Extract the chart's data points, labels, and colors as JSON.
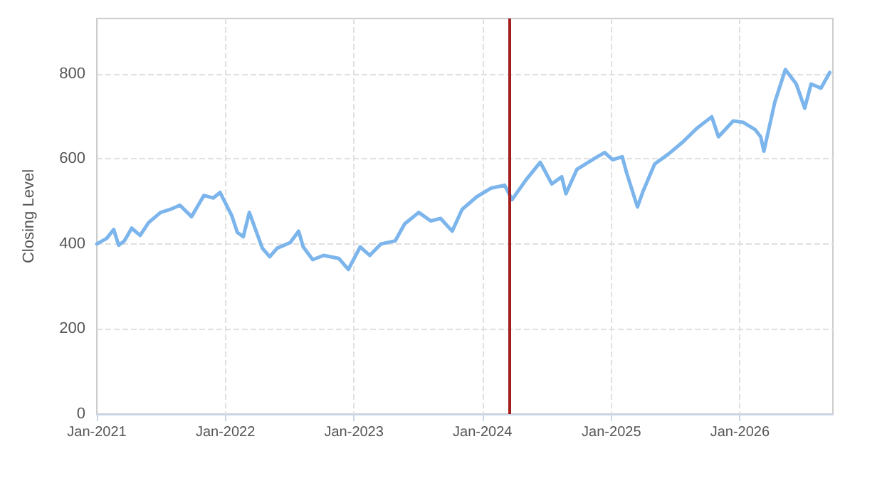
{
  "chart_data": {
    "type": "line",
    "ylabel": "Closing Level",
    "x": [
      "2021-01-01",
      "2021-01-29",
      "2021-02-18",
      "2021-03-04",
      "2021-03-20",
      "2021-04-10",
      "2021-05-04",
      "2021-05-28",
      "2021-07-01",
      "2021-07-28",
      "2021-08-25",
      "2021-09-27",
      "2021-11-01",
      "2021-11-28",
      "2021-12-17",
      "2022-01-19",
      "2022-02-04",
      "2022-02-21",
      "2022-03-10",
      "2022-04-16",
      "2022-05-07",
      "2022-05-28",
      "2022-07-04",
      "2022-07-28",
      "2022-08-10",
      "2022-09-06",
      "2022-10-07",
      "2022-11-19",
      "2022-12-16",
      "2023-01-19",
      "2023-02-15",
      "2023-03-19",
      "2023-04-28",
      "2023-05-25",
      "2023-07-04",
      "2023-08-07",
      "2023-09-04",
      "2023-10-07",
      "2023-11-04",
      "2023-12-16",
      "2024-01-25",
      "2024-03-04",
      "2024-03-25",
      "2024-05-04",
      "2024-06-13",
      "2024-07-16",
      "2024-08-13",
      "2024-08-25",
      "2024-09-25",
      "2024-11-16",
      "2024-12-13",
      "2025-01-04",
      "2025-02-01",
      "2025-02-13",
      "2025-03-16",
      "2025-04-01",
      "2025-05-04",
      "2025-06-13",
      "2025-07-22",
      "2025-09-01",
      "2025-10-13",
      "2025-11-01",
      "2025-12-13",
      "2026-01-10",
      "2026-02-13",
      "2026-03-01",
      "2026-03-10",
      "2026-04-10",
      "2026-05-10",
      "2026-06-10",
      "2026-07-04",
      "2026-07-22",
      "2026-08-19",
      "2026-09-13"
    ],
    "series": [
      {
        "color": "#7cb5ec",
        "values": [
          400,
          413,
          434,
          397,
          407,
          437,
          420,
          450,
          474,
          481,
          491,
          464,
          514,
          508,
          521,
          467,
          427,
          417,
          474,
          390,
          370,
          390,
          403,
          430,
          393,
          363,
          373,
          366,
          340,
          393,
          373,
          400,
          407,
          447,
          474,
          454,
          460,
          430,
          481,
          511,
          531,
          538,
          504,
          551,
          592,
          541,
          558,
          518,
          575,
          602,
          615,
          598,
          605,
          568,
          487,
          524,
          588,
          612,
          639,
          672,
          699,
          652,
          689,
          686,
          669,
          652,
          618,
          733,
          810,
          776,
          719,
          776,
          766,
          803
        ]
      }
    ],
    "xlim": [
      "2021-01-01",
      "2026-09-22"
    ],
    "xticks": [
      {
        "value": "2021-01-01",
        "label": "Jan-2021"
      },
      {
        "value": "2022-01-01",
        "label": "Jan-2022"
      },
      {
        "value": "2023-01-01",
        "label": "Jan-2023"
      },
      {
        "value": "2024-01-01",
        "label": "Jan-2024"
      },
      {
        "value": "2025-01-01",
        "label": "Jan-2025"
      },
      {
        "value": "2026-01-01",
        "label": "Jan-2026"
      }
    ],
    "ylim": [
      0,
      930
    ],
    "yticks": [
      0,
      200,
      400,
      600,
      800
    ],
    "ref_lines": [
      {
        "axis": "x",
        "value": "2024-03-16",
        "color": "#a31f1f"
      }
    ],
    "grid": true,
    "marker": "none",
    "line_style": "solid"
  }
}
